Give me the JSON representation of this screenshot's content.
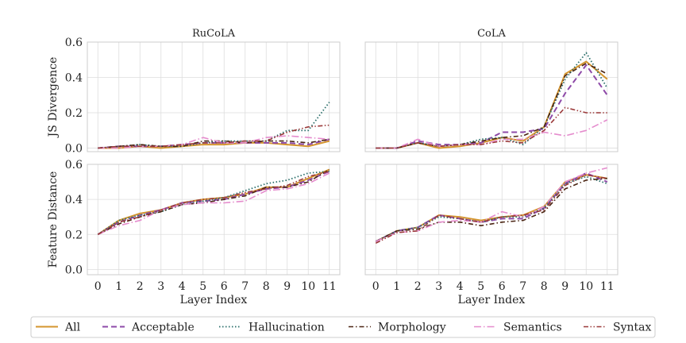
{
  "chart_data": {
    "type": "line",
    "x": [
      0,
      1,
      2,
      3,
      4,
      5,
      6,
      7,
      8,
      9,
      10,
      11
    ],
    "xlabel": "Layer Index",
    "rows": [
      {
        "ylabel": "JS Divergence",
        "ylim": [
          -0.02,
          0.6
        ],
        "yticks": [
          0.0,
          0.2,
          0.4,
          0.6
        ],
        "ytick_labels": [
          "0.0",
          "0.2",
          "0.4",
          "0.6"
        ]
      },
      {
        "ylabel": "Feature Distance",
        "ylim": [
          -0.03,
          0.6
        ],
        "yticks": [
          0.0,
          0.2,
          0.4,
          0.6
        ],
        "ytick_labels": [
          "0.0",
          "0.2",
          "0.4",
          "0.6"
        ]
      }
    ],
    "columns": [
      "RuCoLA",
      "CoLA"
    ],
    "grid": true,
    "legend_placement": "bottom",
    "legend": [
      {
        "name": "All",
        "color": "#d4952e",
        "dash": "solid",
        "width": 2.0
      },
      {
        "name": "Acceptable",
        "color": "#8e4aa8",
        "dash": "dashed",
        "width": 2.0
      },
      {
        "name": "Hallucination",
        "color": "#2a6e6a",
        "dash": "dotted",
        "width": 1.8
      },
      {
        "name": "Morphology",
        "color": "#4a2412",
        "dash": "dashdot",
        "width": 1.6
      },
      {
        "name": "Semantics",
        "color": "#e58ccd",
        "dash": "longdashdot",
        "width": 1.6
      },
      {
        "name": "Syntax",
        "color": "#9b3a3a",
        "dash": "dashdotdot",
        "width": 1.6
      }
    ],
    "panels": [
      {
        "title": "RuCoLA",
        "series": [
          {
            "name": "All",
            "values": [
              0.0,
              0.0,
              0.01,
              0.0,
              0.01,
              0.02,
              0.02,
              0.03,
              0.03,
              0.02,
              0.01,
              0.04
            ]
          },
          {
            "name": "Acceptable",
            "values": [
              0.0,
              0.01,
              0.01,
              0.01,
              0.02,
              0.03,
              0.03,
              0.03,
              0.03,
              0.03,
              0.02,
              0.05
            ]
          },
          {
            "name": "Hallucination",
            "values": [
              0.0,
              0.01,
              0.02,
              0.01,
              0.01,
              0.03,
              0.04,
              0.04,
              0.04,
              0.1,
              0.1,
              0.26
            ]
          },
          {
            "name": "Morphology",
            "values": [
              0.0,
              0.01,
              0.02,
              0.01,
              0.01,
              0.04,
              0.04,
              0.03,
              0.04,
              0.04,
              0.03,
              0.05
            ]
          },
          {
            "name": "Semantics",
            "values": [
              0.0,
              0.0,
              0.01,
              0.01,
              0.02,
              0.06,
              0.03,
              0.03,
              0.06,
              0.07,
              0.06,
              0.05
            ]
          },
          {
            "name": "Syntax",
            "values": [
              0.0,
              0.01,
              0.01,
              0.01,
              0.02,
              0.03,
              0.03,
              0.04,
              0.04,
              0.09,
              0.12,
              0.13
            ]
          }
        ]
      },
      {
        "title": "CoLA",
        "series": [
          {
            "name": "All",
            "values": [
              0.0,
              0.0,
              0.03,
              0.0,
              0.01,
              0.03,
              0.06,
              0.04,
              0.12,
              0.42,
              0.49,
              0.39
            ]
          },
          {
            "name": "Acceptable",
            "values": [
              0.0,
              0.0,
              0.04,
              0.02,
              0.02,
              0.03,
              0.09,
              0.09,
              0.11,
              0.31,
              0.47,
              0.3
            ]
          },
          {
            "name": "Hallucination",
            "values": [
              0.0,
              0.0,
              0.03,
              0.01,
              0.02,
              0.05,
              0.06,
              0.02,
              0.12,
              0.39,
              0.54,
              0.34
            ]
          },
          {
            "name": "Morphology",
            "values": [
              0.0,
              0.0,
              0.03,
              0.01,
              0.02,
              0.04,
              0.06,
              0.07,
              0.12,
              0.41,
              0.48,
              0.42
            ]
          },
          {
            "name": "Semantics",
            "values": [
              0.0,
              0.0,
              0.05,
              0.01,
              0.02,
              0.02,
              0.05,
              0.05,
              0.09,
              0.07,
              0.1,
              0.16
            ]
          },
          {
            "name": "Syntax",
            "values": [
              0.0,
              0.0,
              0.03,
              0.01,
              0.02,
              0.02,
              0.04,
              0.03,
              0.1,
              0.23,
              0.2,
              0.2
            ]
          }
        ]
      },
      {
        "title": "",
        "series": [
          {
            "name": "All",
            "values": [
              0.2,
              0.28,
              0.32,
              0.34,
              0.38,
              0.4,
              0.41,
              0.43,
              0.47,
              0.47,
              0.52,
              0.57
            ]
          },
          {
            "name": "Acceptable",
            "values": [
              0.2,
              0.27,
              0.31,
              0.34,
              0.38,
              0.39,
              0.4,
              0.43,
              0.46,
              0.47,
              0.51,
              0.56
            ]
          },
          {
            "name": "Hallucination",
            "values": [
              0.2,
              0.28,
              0.31,
              0.33,
              0.37,
              0.39,
              0.41,
              0.45,
              0.49,
              0.51,
              0.55,
              0.56
            ]
          },
          {
            "name": "Morphology",
            "values": [
              0.2,
              0.26,
              0.3,
              0.33,
              0.37,
              0.38,
              0.4,
              0.42,
              0.47,
              0.47,
              0.5,
              0.57
            ]
          },
          {
            "name": "Semantics",
            "values": [
              0.2,
              0.25,
              0.28,
              0.34,
              0.37,
              0.38,
              0.38,
              0.39,
              0.45,
              0.46,
              0.49,
              0.55
            ]
          },
          {
            "name": "Syntax",
            "values": [
              0.2,
              0.27,
              0.3,
              0.34,
              0.38,
              0.4,
              0.41,
              0.44,
              0.46,
              0.48,
              0.53,
              0.56
            ]
          }
        ]
      },
      {
        "title": "",
        "series": [
          {
            "name": "All",
            "values": [
              0.16,
              0.22,
              0.24,
              0.31,
              0.3,
              0.28,
              0.3,
              0.31,
              0.36,
              0.5,
              0.54,
              0.52
            ]
          },
          {
            "name": "Acceptable",
            "values": [
              0.16,
              0.22,
              0.24,
              0.31,
              0.29,
              0.27,
              0.29,
              0.29,
              0.35,
              0.49,
              0.55,
              0.5
            ]
          },
          {
            "name": "Hallucination",
            "values": [
              0.16,
              0.22,
              0.24,
              0.3,
              0.29,
              0.27,
              0.3,
              0.3,
              0.35,
              0.49,
              0.53,
              0.49
            ]
          },
          {
            "name": "Morphology",
            "values": [
              0.16,
              0.22,
              0.23,
              0.27,
              0.27,
              0.25,
              0.27,
              0.28,
              0.33,
              0.46,
              0.51,
              0.52
            ]
          },
          {
            "name": "Semantics",
            "values": [
              0.16,
              0.21,
              0.22,
              0.27,
              0.28,
              0.27,
              0.33,
              0.3,
              0.36,
              0.5,
              0.55,
              0.58
            ]
          },
          {
            "name": "Syntax",
            "values": [
              0.15,
              0.21,
              0.22,
              0.31,
              0.29,
              0.27,
              0.3,
              0.31,
              0.34,
              0.48,
              0.54,
              0.52
            ]
          }
        ]
      }
    ]
  }
}
